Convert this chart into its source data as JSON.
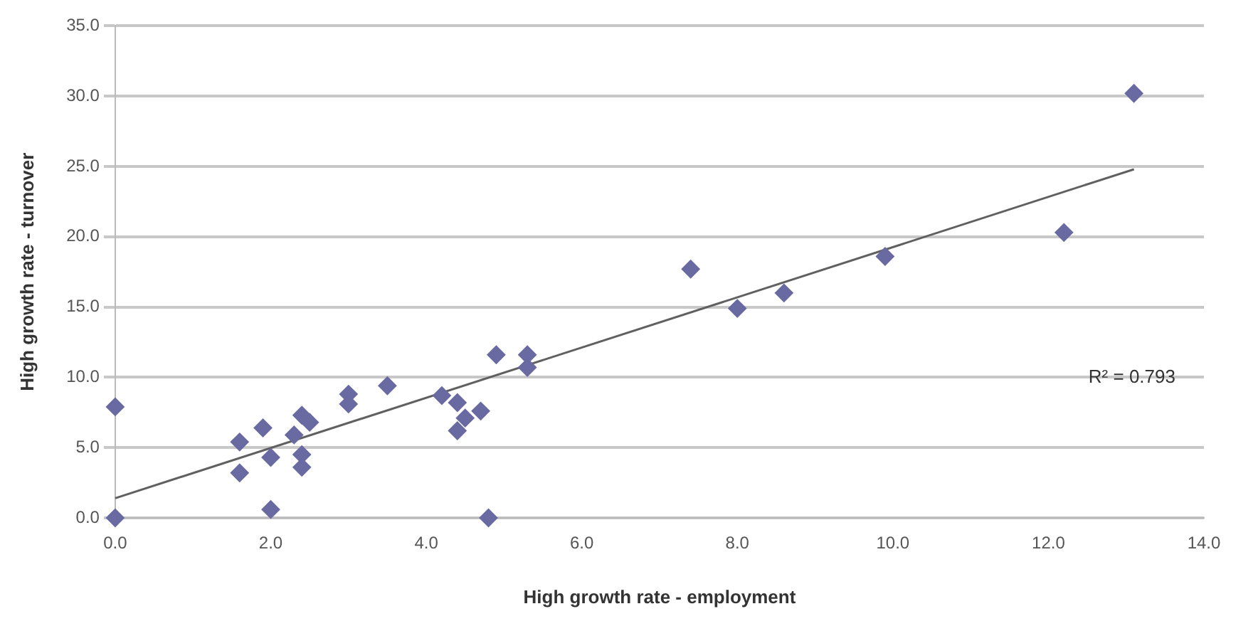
{
  "chart_data": {
    "type": "scatter",
    "xlabel": "High growth rate - employment",
    "ylabel": "High growth rate - turnover",
    "xlim": [
      0,
      14
    ],
    "ylim": [
      0,
      35
    ],
    "xticks": [
      {
        "value": 0,
        "label": "0.0"
      },
      {
        "value": 2,
        "label": "2.0"
      },
      {
        "value": 4,
        "label": "4.0"
      },
      {
        "value": 6,
        "label": "6.0"
      },
      {
        "value": 8,
        "label": "8.0"
      },
      {
        "value": 10,
        "label": "10.0"
      },
      {
        "value": 12,
        "label": "12.0"
      },
      {
        "value": 14,
        "label": "14.0"
      }
    ],
    "yticks": [
      {
        "value": 0,
        "label": "0.0"
      },
      {
        "value": 5,
        "label": "5.0"
      },
      {
        "value": 10,
        "label": "10.0"
      },
      {
        "value": 15,
        "label": "15.0"
      },
      {
        "value": 20,
        "label": "20.0"
      },
      {
        "value": 25,
        "label": "25.0"
      },
      {
        "value": 30,
        "label": "30.0"
      },
      {
        "value": 35,
        "label": "35.0"
      }
    ],
    "grid": "y",
    "marker": "diamond",
    "annotations": [
      "R² = 0.793"
    ],
    "series": [
      {
        "color": "#6a6aa2",
        "x": [
          0,
          0,
          1.6,
          1.6,
          1.9,
          2.0,
          2.0,
          2.4,
          2.5,
          2.3,
          2.4,
          2.4,
          3.0,
          3.0,
          3.5,
          4.2,
          4.4,
          4.5,
          4.4,
          4.7,
          4.9,
          5.3,
          5.3,
          4.8,
          13.1,
          12.2,
          9.9,
          8.6,
          8.0,
          7.4
        ],
        "values": [
          7.9,
          0,
          5.4,
          3.2,
          6.4,
          0.6,
          4.3,
          7.3,
          6.8,
          5.9,
          4.5,
          3.6,
          8.8,
          8.1,
          9.4,
          8.7,
          8.2,
          7.1,
          6.2,
          7.6,
          11.6,
          11.6,
          10.7,
          0,
          30.2,
          20.3,
          18.6,
          16.0,
          14.9,
          17.7
        ]
      },
      {
        "type": "line",
        "color": "#606060",
        "line_style": "solid",
        "marker": "none",
        "x": [
          0,
          13.1
        ],
        "values": [
          1.4,
          24.8
        ]
      }
    ]
  }
}
